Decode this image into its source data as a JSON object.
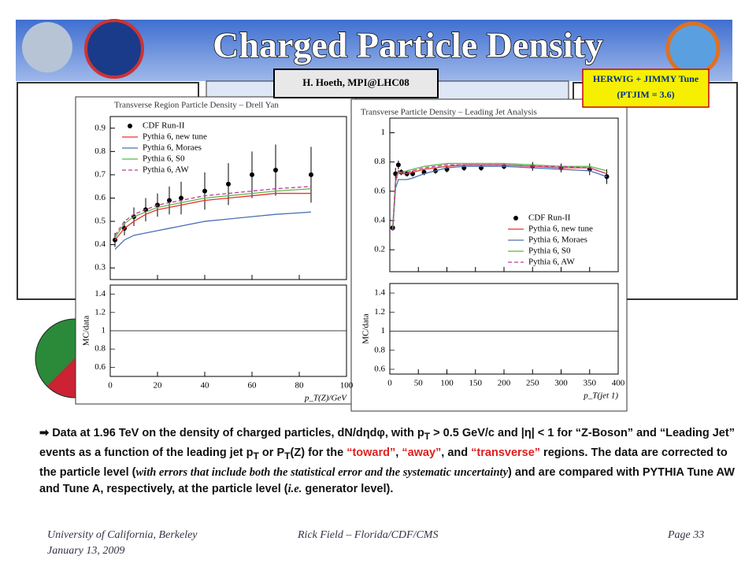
{
  "header": {
    "title": "Charged Particle Density",
    "credit": "H. Hoeth, MPI@LHC08",
    "herwig": "HERWIG + JIMMY Tune (PTJIM = 3.6)"
  },
  "chart_data": [
    {
      "type": "line",
      "title": "Transverse Region Particle Density – Drell Yan",
      "xlabel": "p_T(Z)/GeV",
      "legend": "upper left",
      "x": [
        2,
        6,
        10,
        15,
        20,
        25,
        30,
        40,
        50,
        60,
        70,
        85
      ],
      "xlim": [
        0,
        100
      ],
      "xticks": [
        0,
        20,
        40,
        60,
        80,
        100
      ],
      "ylim": [
        0.25,
        0.95
      ],
      "yticks": [
        0.3,
        0.4,
        0.5,
        0.6,
        0.7,
        0.8,
        0.9
      ],
      "ratio_ylabel": "MC/data",
      "ratio_ylim": [
        0.5,
        1.5
      ],
      "ratio_yticks": [
        0.6,
        0.8,
        1,
        1.2,
        1.4
      ],
      "series": [
        {
          "name": "CDF Run-II",
          "color": "#000000",
          "style": "points",
          "values": [
            0.42,
            0.47,
            0.52,
            0.55,
            0.57,
            0.59,
            0.6,
            0.63,
            0.66,
            0.7,
            0.72,
            0.7
          ],
          "errors": [
            0.03,
            0.03,
            0.04,
            0.05,
            0.05,
            0.06,
            0.07,
            0.08,
            0.09,
            0.1,
            0.11,
            0.12
          ]
        },
        {
          "name": "Pythia 6, new tune",
          "color": "#e8312f",
          "style": "solid",
          "values": [
            0.42,
            0.47,
            0.5,
            0.53,
            0.55,
            0.56,
            0.57,
            0.59,
            0.6,
            0.61,
            0.62,
            0.62
          ]
        },
        {
          "name": "Pythia 6, Moraes",
          "color": "#4a6fb5",
          "style": "solid",
          "values": [
            0.38,
            0.42,
            0.44,
            0.45,
            0.46,
            0.47,
            0.48,
            0.5,
            0.51,
            0.52,
            0.53,
            0.54
          ]
        },
        {
          "name": "Pythia 6, S0",
          "color": "#5cb84a",
          "style": "solid",
          "values": [
            0.43,
            0.49,
            0.52,
            0.54,
            0.56,
            0.57,
            0.58,
            0.6,
            0.61,
            0.62,
            0.63,
            0.64
          ]
        },
        {
          "name": "Pythia 6, AW",
          "color": "#c0399a",
          "style": "dashed",
          "values": [
            0.44,
            0.5,
            0.53,
            0.55,
            0.57,
            0.58,
            0.59,
            0.61,
            0.62,
            0.63,
            0.64,
            0.65
          ]
        }
      ]
    },
    {
      "type": "line",
      "title": "Transverse Particle Density – Leading Jet Analysis",
      "xlabel": "p_T(jet 1)",
      "legend": "lower right",
      "x": [
        5,
        10,
        15,
        20,
        30,
        40,
        60,
        80,
        100,
        130,
        160,
        200,
        250,
        300,
        350,
        380
      ],
      "xlim": [
        0,
        400
      ],
      "xticks": [
        0,
        50,
        100,
        150,
        200,
        250,
        300,
        350,
        400
      ],
      "ylim": [
        0.05,
        1.1
      ],
      "yticks": [
        0.2,
        0.4,
        0.6,
        0.8,
        1
      ],
      "ratio_ylabel": "MC/data",
      "ratio_ylim": [
        0.55,
        1.5
      ],
      "ratio_yticks": [
        0.6,
        0.8,
        1,
        1.2,
        1.4
      ],
      "series": [
        {
          "name": "CDF Run-II",
          "color": "#000000",
          "style": "points",
          "values": [
            0.35,
            0.72,
            0.78,
            0.73,
            0.72,
            0.72,
            0.73,
            0.74,
            0.75,
            0.76,
            0.76,
            0.77,
            0.77,
            0.76,
            0.75,
            0.7
          ],
          "errors": [
            0.02,
            0.04,
            0.03,
            0.02,
            0.02,
            0.02,
            0.02,
            0.02,
            0.02,
            0.02,
            0.02,
            0.02,
            0.03,
            0.03,
            0.04,
            0.05
          ]
        },
        {
          "name": "Pythia 6, new tune",
          "color": "#e8312f",
          "style": "solid",
          "values": [
            0.33,
            0.68,
            0.74,
            0.72,
            0.72,
            0.73,
            0.75,
            0.76,
            0.77,
            0.78,
            0.78,
            0.78,
            0.77,
            0.76,
            0.76,
            0.72
          ]
        },
        {
          "name": "Pythia 6, Moraes",
          "color": "#4a6fb5",
          "style": "solid",
          "values": [
            0.33,
            0.62,
            0.68,
            0.68,
            0.68,
            0.69,
            0.72,
            0.74,
            0.76,
            0.77,
            0.77,
            0.77,
            0.76,
            0.75,
            0.74,
            0.7
          ]
        },
        {
          "name": "Pythia 6, S0",
          "color": "#5cb84a",
          "style": "solid",
          "values": [
            0.34,
            0.66,
            0.73,
            0.73,
            0.74,
            0.75,
            0.77,
            0.78,
            0.79,
            0.79,
            0.79,
            0.79,
            0.78,
            0.77,
            0.77,
            0.74
          ]
        },
        {
          "name": "Pythia 6, AW",
          "color": "#c0399a",
          "style": "dashed",
          "values": [
            0.33,
            0.67,
            0.74,
            0.73,
            0.73,
            0.74,
            0.76,
            0.77,
            0.78,
            0.78,
            0.78,
            0.78,
            0.77,
            0.77,
            0.76,
            0.72
          ]
        }
      ]
    }
  ],
  "body": {
    "segments": [
      "Data at 1.96 TeV on the density of charged particles, dN/dηdφ, with p",
      "T",
      " > 0.5 GeV/c and |η| < 1 for “Z-Boson” and “Leading Jet” events as a function of the leading jet p",
      "T",
      " or P",
      "T",
      "(Z) for the ",
      "“toward”",
      ", ",
      "“away”",
      ", and ",
      "“transverse”",
      " regions.  The data are corrected to the particle level (",
      "with errors that include both the statistical error and the systematic uncertainty",
      ") and are compared with PYTHIA Tune AW and Tune A, respectively, at the particle level (",
      "i.e.",
      " generator level)."
    ]
  },
  "footer": {
    "affiliation": "University of California, Berkeley",
    "date": "January 13, 2009",
    "author": "Rick Field – Florida/CDF/CMS",
    "page": "Page 33"
  }
}
